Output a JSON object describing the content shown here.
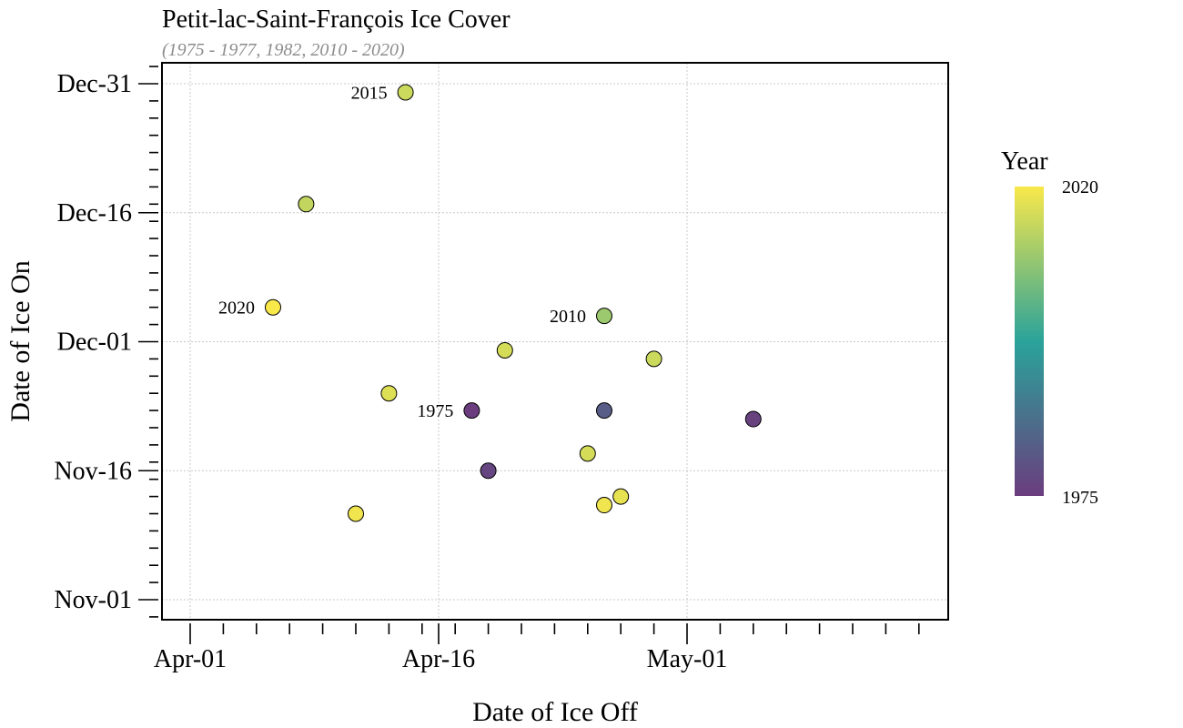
{
  "chart_data": {
    "type": "scatter",
    "title": "Petit-lac-Saint-François Ice Cover",
    "subtitle": "(1975 - 1977, 1982, 2010 - 2020)",
    "xlabel": "Date of Ice Off",
    "ylabel": "Date of Ice On",
    "x_ticks": [
      "Apr-01",
      "Apr-16",
      "May-01"
    ],
    "y_ticks": [
      "Dec-31",
      "Dec-16",
      "Dec-01",
      "Nov-16",
      "Nov-01"
    ],
    "grid": true,
    "legend": {
      "title": "Year",
      "min_label": "1975",
      "max_label": "2020",
      "placement": "right",
      "color_low": "#6b3d7e",
      "color_mid": "#2aa39a",
      "color_high": "#f9e84a"
    },
    "points": [
      {
        "x": "Apr-14",
        "y": "Dec-30",
        "year": 2015,
        "label": "2015"
      },
      {
        "x": "Apr-08",
        "y": "Dec-17",
        "year": 2014
      },
      {
        "x": "Apr-06",
        "y": "Dec-05",
        "year": 2020,
        "label": "2020"
      },
      {
        "x": "Apr-26",
        "y": "Dec-04",
        "year": 2010,
        "label": "2010"
      },
      {
        "x": "Apr-20",
        "y": "Nov-30",
        "year": 2016
      },
      {
        "x": "Apr-29",
        "y": "Nov-29",
        "year": 2015
      },
      {
        "x": "Apr-13",
        "y": "Nov-25",
        "year": 2017
      },
      {
        "x": "Apr-18",
        "y": "Nov-23",
        "year": 1975,
        "label": "1975"
      },
      {
        "x": "Apr-26",
        "y": "Nov-23",
        "year": 1982
      },
      {
        "x": "May-05",
        "y": "Nov-22",
        "year": 1976
      },
      {
        "x": "Apr-25",
        "y": "Nov-18",
        "year": 2016
      },
      {
        "x": "Apr-19",
        "y": "Nov-16",
        "year": 1977
      },
      {
        "x": "Apr-27",
        "y": "Nov-13",
        "year": 2018
      },
      {
        "x": "Apr-26",
        "y": "Nov-12",
        "year": 2019
      },
      {
        "x": "Apr-11",
        "y": "Nov-11",
        "year": 2019
      }
    ]
  }
}
